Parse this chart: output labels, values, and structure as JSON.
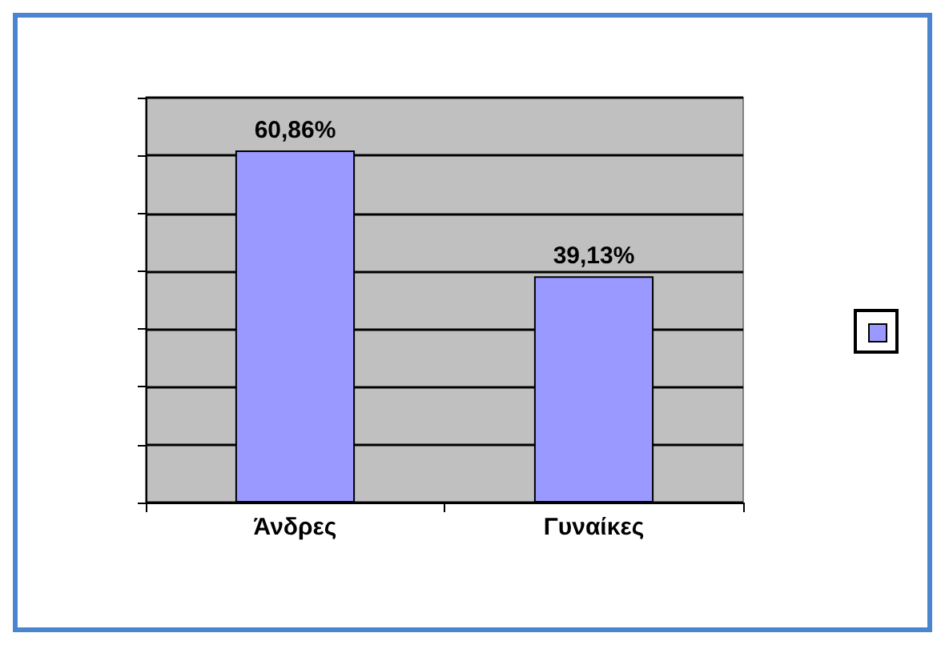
{
  "chart_data": {
    "type": "bar",
    "categories": [
      "Άνδρες",
      "Γυναίκες"
    ],
    "values": [
      60.86,
      39.13
    ],
    "value_labels": [
      "60,86%",
      "39,13%"
    ],
    "color": "#9999ff",
    "ylim": [
      0,
      70
    ],
    "yticks": [
      {
        "value": 0,
        "label": null
      },
      {
        "value": 10,
        "label": null
      },
      {
        "value": 20,
        "label": null
      },
      {
        "value": 30,
        "label": null
      },
      {
        "value": 40,
        "label": null
      },
      {
        "value": 50,
        "label": null
      },
      {
        "value": 60,
        "label": null
      },
      {
        "value": 70,
        "label": null
      }
    ],
    "grid": "y",
    "tick_labels": "x"
  }
}
